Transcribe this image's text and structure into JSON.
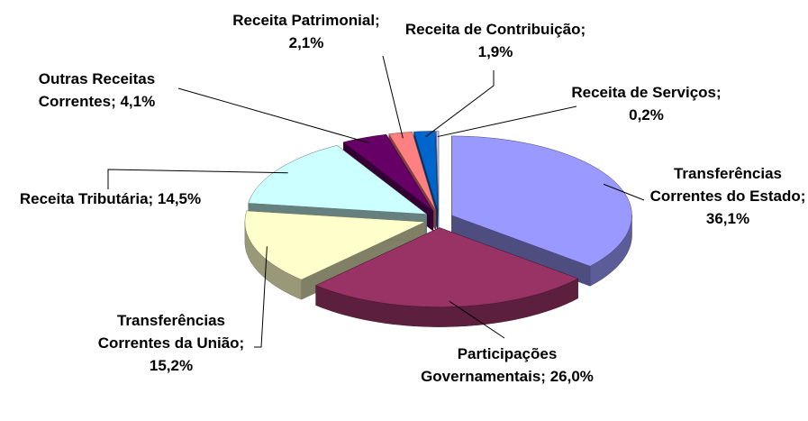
{
  "chart_data": {
    "type": "pie3d",
    "categories": [
      "Transferências Correntes do Estado;",
      "Participações Governamentais;",
      "Transferências Correntes da União;",
      "Receita Tributária;",
      "Outras Receitas Correntes;",
      "Receita Patrimonial;",
      "Receita de Contribuição;",
      "Receita de Serviços;"
    ],
    "values": [
      36.1,
      26.0,
      15.2,
      14.5,
      4.1,
      2.1,
      1.9,
      0.2
    ],
    "value_labels": [
      "36,1%",
      "26,0%",
      "15,2%",
      "14,5%",
      "4,1%",
      "2,1%",
      "1,9%",
      "0,2%"
    ],
    "colors": [
      "#9999ff",
      "#993366",
      "#ffffcc",
      "#ccffff",
      "#660066",
      "#ff8080",
      "#0066cc",
      "#ccccff"
    ]
  }
}
